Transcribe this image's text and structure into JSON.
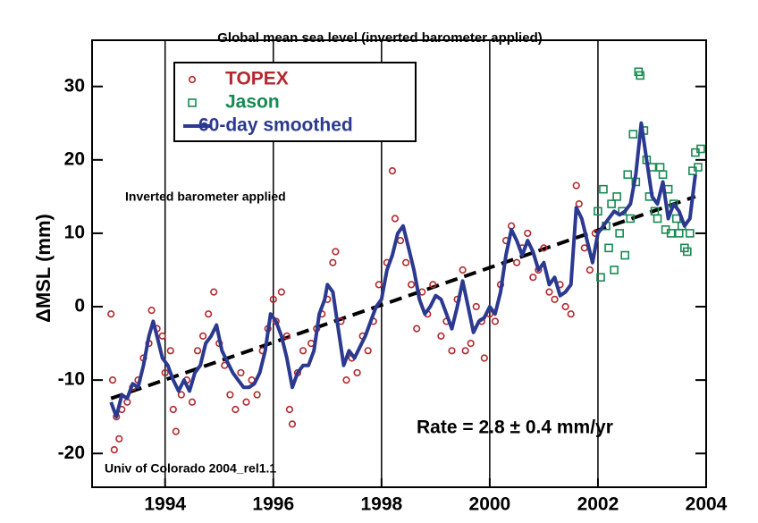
{
  "chart_data": {
    "type": "scatter",
    "title": "Global mean sea level (inverted barometer applied)",
    "y_label": "ΔMSL (mm)",
    "annotations": [
      "Inverted barometer applied",
      "Rate = 2.8 ± 0.4 mm/yr",
      "Univ of Colorado 2004_rel1.1"
    ],
    "xlim": [
      1992.65,
      2004
    ],
    "ylim": [
      -24.6,
      36.3
    ],
    "xticks": [
      1994,
      1996,
      1998,
      2000,
      2002,
      2004
    ],
    "yticks": [
      -20,
      -10,
      0,
      10,
      20,
      30
    ],
    "grid": true,
    "legend": "upper left",
    "series": [
      {
        "name": "TOPEX",
        "type": "scatter",
        "marker": "circle",
        "color": "#b3282e",
        "x": [
          1993.0,
          1993.03,
          1993.06,
          1993.1,
          1993.15,
          1993.2,
          1993.3,
          1993.4,
          1993.5,
          1993.6,
          1993.7,
          1993.75,
          1993.85,
          1993.95,
          1994.0,
          1994.1,
          1994.15,
          1994.2,
          1994.3,
          1994.4,
          1994.5,
          1994.6,
          1994.7,
          1994.8,
          1994.9,
          1995.0,
          1995.1,
          1995.2,
          1995.3,
          1995.4,
          1995.5,
          1995.6,
          1995.7,
          1995.8,
          1995.9,
          1996.0,
          1996.05,
          1996.15,
          1996.25,
          1996.3,
          1996.35,
          1996.45,
          1996.55,
          1996.7,
          1996.8,
          1996.9,
          1997.0,
          1997.1,
          1997.15,
          1997.25,
          1997.35,
          1997.45,
          1997.55,
          1997.65,
          1997.75,
          1997.85,
          1997.95,
          1998.1,
          1998.2,
          1998.25,
          1998.35,
          1998.45,
          1998.55,
          1998.65,
          1998.75,
          1998.85,
          1998.95,
          1999.1,
          1999.2,
          1999.3,
          1999.4,
          1999.5,
          1999.55,
          1999.65,
          1999.75,
          1999.85,
          1999.9,
          2000.0,
          2000.1,
          2000.2,
          2000.3,
          2000.4,
          2000.5,
          2000.6,
          2000.7,
          2000.8,
          2000.9,
          2001.0,
          2001.1,
          2001.2,
          2001.3,
          2001.4,
          2001.5,
          2001.6,
          2001.65,
          2001.75,
          2001.85,
          2001.95
        ],
        "values": [
          -1,
          -10,
          -19.5,
          -15,
          -18,
          -14,
          -13,
          -11,
          -10,
          -7,
          -5,
          -0.5,
          -3,
          -4,
          -9,
          -6,
          -14,
          -17,
          -12,
          -10,
          -13,
          -6,
          -4,
          -1,
          2,
          -5,
          -8,
          -12,
          -14,
          -9,
          -13,
          -10,
          -12,
          -6,
          -3,
          1,
          -2,
          2,
          -4,
          -14,
          -16,
          -9,
          -6,
          -5,
          -3,
          -1,
          1,
          6,
          7.5,
          -2,
          -10,
          -7,
          -9,
          -4,
          -6,
          -2,
          3,
          6,
          18.5,
          12,
          9,
          6,
          3,
          -3,
          2,
          -1,
          3,
          -4,
          -2,
          -6,
          1,
          5,
          -6,
          -5,
          0,
          -2,
          -7,
          -1,
          -2,
          3,
          9,
          11,
          6,
          8,
          10,
          4,
          5,
          8,
          2,
          1,
          3,
          0,
          -1,
          16.5,
          14,
          8,
          5,
          10
        ]
      },
      {
        "name": "Jason",
        "type": "scatter",
        "marker": "square",
        "color": "#178a52",
        "x": [
          2002.0,
          2002.05,
          2002.1,
          2002.15,
          2002.2,
          2002.25,
          2002.3,
          2002.35,
          2002.4,
          2002.45,
          2002.5,
          2002.55,
          2002.6,
          2002.65,
          2002.7,
          2002.75,
          2002.78,
          2002.85,
          2002.9,
          2002.95,
          2003.0,
          2003.05,
          2003.1,
          2003.15,
          2003.2,
          2003.25,
          2003.3,
          2003.35,
          2003.4,
          2003.45,
          2003.5,
          2003.55,
          2003.6,
          2003.65,
          2003.7,
          2003.75,
          2003.8,
          2003.85,
          2003.9
        ],
        "values": [
          13,
          4,
          16,
          11,
          8,
          14,
          5,
          15,
          10,
          13,
          7,
          18,
          12,
          23.5,
          17,
          32,
          31.5,
          24,
          20,
          15,
          19,
          13,
          12,
          19,
          18,
          10.5,
          16,
          10,
          14,
          12,
          10,
          11,
          8,
          7.5,
          10,
          18.5,
          21,
          19,
          21.5
        ]
      },
      {
        "name": "60-day smoothed",
        "type": "line",
        "color": "#2b3990",
        "x": [
          1993.0,
          1993.1,
          1993.2,
          1993.3,
          1993.4,
          1993.5,
          1993.6,
          1993.7,
          1993.78,
          1993.85,
          1993.95,
          1994.05,
          1994.15,
          1994.25,
          1994.35,
          1994.45,
          1994.55,
          1994.65,
          1994.75,
          1994.85,
          1994.95,
          1995.05,
          1995.15,
          1995.25,
          1995.35,
          1995.45,
          1995.55,
          1995.65,
          1995.75,
          1995.85,
          1995.95,
          1996.05,
          1996.15,
          1996.25,
          1996.35,
          1996.45,
          1996.55,
          1996.65,
          1996.75,
          1996.85,
          1996.95,
          1997.0,
          1997.1,
          1997.2,
          1997.3,
          1997.4,
          1997.5,
          1997.6,
          1997.7,
          1997.8,
          1997.9,
          1998.0,
          1998.1,
          1998.2,
          1998.3,
          1998.4,
          1998.5,
          1998.6,
          1998.7,
          1998.8,
          1998.9,
          1999.0,
          1999.1,
          1999.2,
          1999.3,
          1999.4,
          1999.5,
          1999.6,
          1999.7,
          1999.8,
          1999.9,
          2000.0,
          2000.1,
          2000.2,
          2000.3,
          2000.4,
          2000.5,
          2000.6,
          2000.7,
          2000.8,
          2000.9,
          2001.0,
          2001.1,
          2001.2,
          2001.3,
          2001.4,
          2001.5,
          2001.6,
          2001.7,
          2001.8,
          2001.9,
          2002.0,
          2002.1,
          2002.2,
          2002.3,
          2002.4,
          2002.5,
          2002.6,
          2002.7,
          2002.8,
          2002.9,
          2003.0,
          2003.1,
          2003.2,
          2003.3,
          2003.4,
          2003.5,
          2003.6,
          2003.7,
          2003.8
        ],
        "values": [
          -13,
          -15,
          -12,
          -12.5,
          -10.5,
          -11,
          -8,
          -4,
          -2,
          -4,
          -7,
          -8,
          -10,
          -11.5,
          -10,
          -11.5,
          -9,
          -8,
          -5,
          -4,
          -2.5,
          -6,
          -7.5,
          -9,
          -10,
          -11,
          -11,
          -10.5,
          -9,
          -6,
          -1,
          -2,
          -4,
          -7,
          -11,
          -9,
          -8,
          -8,
          -6,
          -1,
          1,
          3,
          2,
          -3,
          -8,
          -6,
          -7,
          -5.5,
          -4,
          -2,
          0,
          1,
          5,
          7,
          10,
          11,
          8,
          5,
          1,
          -1,
          0,
          1.5,
          1,
          -1,
          -3,
          0,
          3.5,
          0,
          -3.5,
          -2,
          -1.5,
          0,
          -1,
          2,
          7,
          10.5,
          9,
          7,
          9,
          7.5,
          5,
          6,
          3,
          4,
          1.5,
          2,
          3,
          13.5,
          12,
          9,
          6,
          10,
          11,
          12,
          13,
          12.5,
          13,
          14,
          18,
          25,
          20,
          15,
          14,
          17,
          12,
          14,
          13,
          11,
          12,
          18
        ]
      }
    ],
    "trend_line": {
      "color": "#000000",
      "x": [
        1993.0,
        2003.8
      ],
      "values": [
        -12.5,
        15
      ]
    }
  }
}
